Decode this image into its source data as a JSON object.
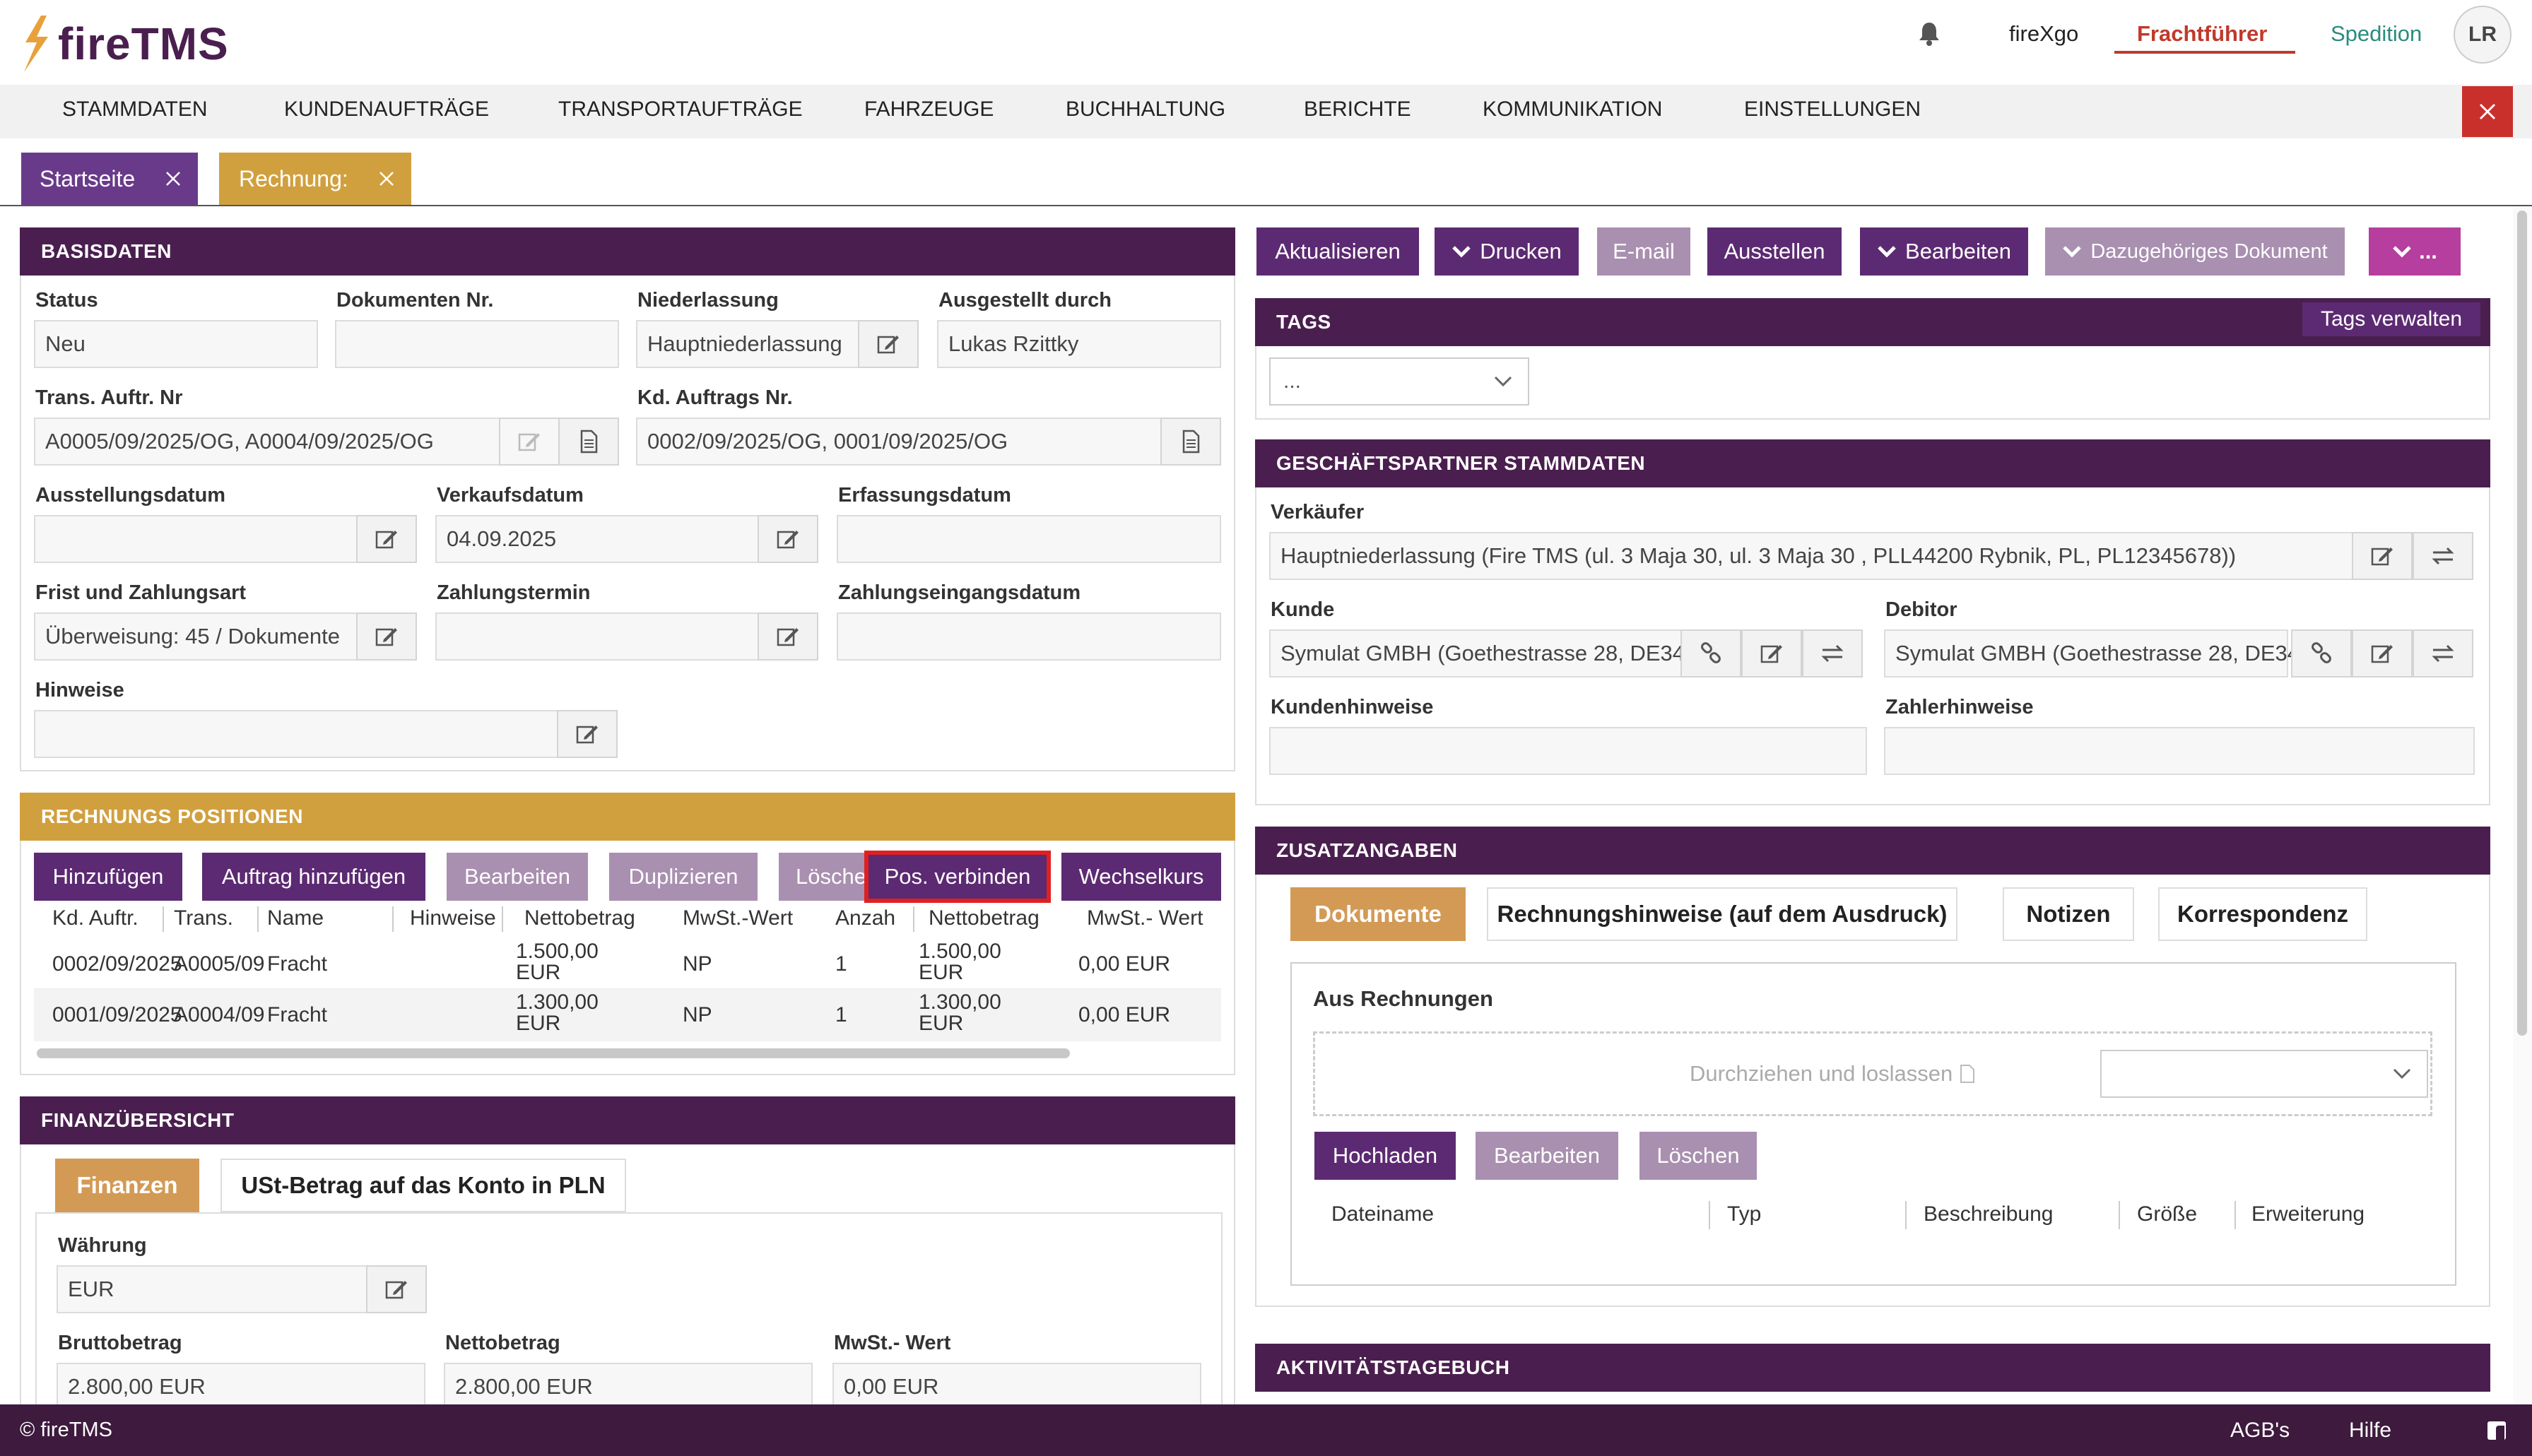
{
  "brand": {
    "name": "fireTMS",
    "user_initials": "LR"
  },
  "topnav": {
    "app": "fireXgo",
    "carrier": "Frachtführer",
    "forwarding": "Spedition"
  },
  "menu": [
    "STAMMDATEN",
    "KUNDENAUFTRÄGE",
    "TRANSPORTAUFTRÄGE",
    "FAHRZEUGE",
    "BUCHHALTUNG",
    "BERICHTE",
    "KOMMUNIKATION",
    "EINSTELLUNGEN"
  ],
  "tabs": [
    {
      "label": "Startseite"
    },
    {
      "label": "Rechnung:"
    }
  ],
  "basis": {
    "header": "BASISDATEN",
    "status_label": "Status",
    "status": "Neu",
    "docnr_label": "Dokumenten Nr.",
    "docnr": "",
    "branch_label": "Niederlassung",
    "branch": "Hauptniederlassung",
    "issued_by_label": "Ausgestellt durch",
    "issued_by": "Lukas Rzittky",
    "trans_label": "Trans. Auftr. Nr",
    "trans": "A0005/09/2025/OG, A0004/09/2025/OG",
    "kd_label": "Kd. Auftrags Nr.",
    "kd": "0002/09/2025/OG, 0001/09/2025/OG",
    "issue_date_label": "Ausstellungsdatum",
    "issue_date": "",
    "sale_date_label": "Verkaufsdatum",
    "sale_date": "04.09.2025",
    "entry_date_label": "Erfassungsdatum",
    "entry_date": "",
    "term_label": "Frist und Zahlungsart",
    "term": "Überweisung: 45 / Dokumente",
    "pay_date_label": "Zahlungstermin",
    "pay_date": "",
    "receipt_label": "Zahlungseingangsdatum",
    "receipt": "",
    "notes_label": "Hinweise",
    "notes": ""
  },
  "positions": {
    "header": "RECHNUNGS POSITIONEN",
    "buttons": [
      "Hinzufügen",
      "Auftrag hinzufügen",
      "Bearbeiten",
      "Duplizieren",
      "Lösche",
      "Pos. verbinden",
      "Wechselkurs"
    ],
    "columns": [
      "Kd. Auftr.",
      "Trans.",
      "Name",
      "Hinweise",
      "Nettobetrag",
      "MwSt.-Wert",
      "Anzah",
      "Nettobetrag",
      "MwSt.- Wert"
    ],
    "rows": [
      {
        "kd": "0002/09/2025",
        "trans": "A0005/09",
        "name": "Fracht",
        "notes": "",
        "net1": "1.500,00",
        "cur1": "EUR",
        "vat": "NP",
        "qty": "1",
        "net2": "1.500,00",
        "cur2": "EUR",
        "vat2": "0,00 EUR"
      },
      {
        "kd": "0001/09/2025",
        "trans": "A0004/09",
        "name": "Fracht",
        "notes": "",
        "net1": "1.300,00",
        "cur1": "EUR",
        "vat": "NP",
        "qty": "1",
        "net2": "1.300,00",
        "cur2": "EUR",
        "vat2": "0,00 EUR"
      }
    ]
  },
  "finance": {
    "header": "FINANZÜBERSICHT",
    "tabs": [
      "Finanzen",
      "USt-Betrag auf das Konto in PLN"
    ],
    "currency_label": "Währung",
    "currency": "EUR",
    "gross_label": "Bruttobetrag",
    "gross": "2.800,00 EUR",
    "net_label": "Nettobetrag",
    "net": "2.800,00 EUR",
    "vat_label": "MwSt.- Wert",
    "vat": "0,00 EUR"
  },
  "actions": {
    "refresh": "Aktualisieren",
    "print": "Drucken",
    "email": "E-mail",
    "issue": "Ausstellen",
    "edit": "Bearbeiten",
    "related": "Dazugehöriges Dokument",
    "more": "..."
  },
  "tags": {
    "header": "TAGS",
    "manage": "Tags verwalten",
    "select": "..."
  },
  "partner": {
    "header": "GESCHÄFTSPARTNER STAMMDATEN",
    "seller_label": "Verkäufer",
    "seller": "Hauptniederlassung (Fire TMS  (ul. 3 Maja 30, ul. 3 Maja 30 , PLL44200 Rybnik, PL, PL12345678))",
    "customer_label": "Kunde",
    "customer": "Symulat GMBH (Goethestrasse 28, DE34",
    "debtor_label": "Debitor",
    "debtor": "Symulat GMBH (Goethestrasse 28, DE34",
    "cust_notes_label": "Kundenhinweise",
    "payer_notes_label": "Zahlerhinweise"
  },
  "extra": {
    "header": "ZUSATZANGABEN",
    "tabs": [
      "Dokumente",
      "Rechnungshinweise (auf dem Ausdruck)",
      "Notizen",
      "Korrespondenz"
    ],
    "from_invoices": "Aus Rechnungen",
    "dropzone": "Durchziehen und loslassen",
    "buttons": [
      "Hochladen",
      "Bearbeiten",
      "Löschen"
    ],
    "columns": [
      "Dateiname",
      "Typ",
      "Beschreibung",
      "Größe",
      "Erweiterung"
    ]
  },
  "activity": {
    "header": "AKTIVITÄTSTAGEBUCH"
  },
  "footer": {
    "copyright": "© fireTMS",
    "terms": "AGB's",
    "help": "Hilfe"
  },
  "colors": {
    "purple": "#4a1f4f",
    "gold": "#d1a03e",
    "accent_red": "#c0392b",
    "tab_orange": "#d39a55"
  }
}
